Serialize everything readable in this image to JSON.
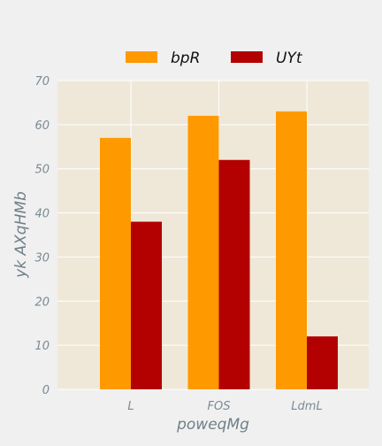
{
  "chart_data": {
    "type": "bar",
    "title": "",
    "xlabel": "poweqMg",
    "ylabel": "yk AXqHMb",
    "categories": [
      "L",
      "FOS",
      "LdmL"
    ],
    "series": [
      {
        "name": "bpR",
        "values": [
          57,
          62,
          63
        ],
        "color": "#ff9900"
      },
      {
        "name": "UYt",
        "values": [
          38,
          52,
          12
        ],
        "color": "#b30000"
      }
    ],
    "ylim": [
      0,
      70
    ],
    "yticks": [
      0,
      10,
      20,
      30,
      40,
      50,
      60,
      70
    ],
    "grid": true,
    "legend_position": "top-center",
    "plot_background": "#efe8d8",
    "grid_color": "#ffffff"
  }
}
